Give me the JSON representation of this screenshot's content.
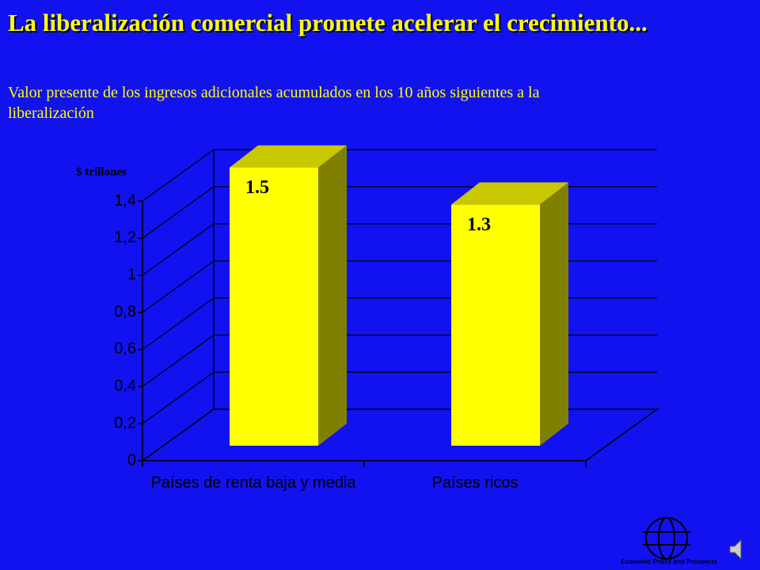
{
  "chart_data": {
    "type": "bar3d",
    "title": "La liberalización comercial promete acelerar el crecimiento...",
    "subtitle": "Valor presente de los ingresos adicionales acumulados en los 10 años siguientes a la liberalización",
    "y_label": "$ trillones",
    "categories": [
      "Países de renta baja y media",
      "Países ricos"
    ],
    "values": [
      1.5,
      1.3
    ],
    "color": "#ffff00",
    "ylim": [
      0,
      1.4
    ],
    "yticks": [
      0,
      {
        "value": 0.2,
        "label": "0,2"
      },
      {
        "value": 0.4,
        "label": "0,4"
      },
      {
        "value": 0.6,
        "label": "0,6"
      },
      {
        "value": 0.8,
        "label": "0,8"
      },
      1,
      {
        "value": 1.2,
        "label": "1,2"
      },
      {
        "value": 1.4,
        "label": "1,4"
      }
    ],
    "grid": true
  },
  "logo": {
    "text": "Economic Policy and Prospects"
  }
}
